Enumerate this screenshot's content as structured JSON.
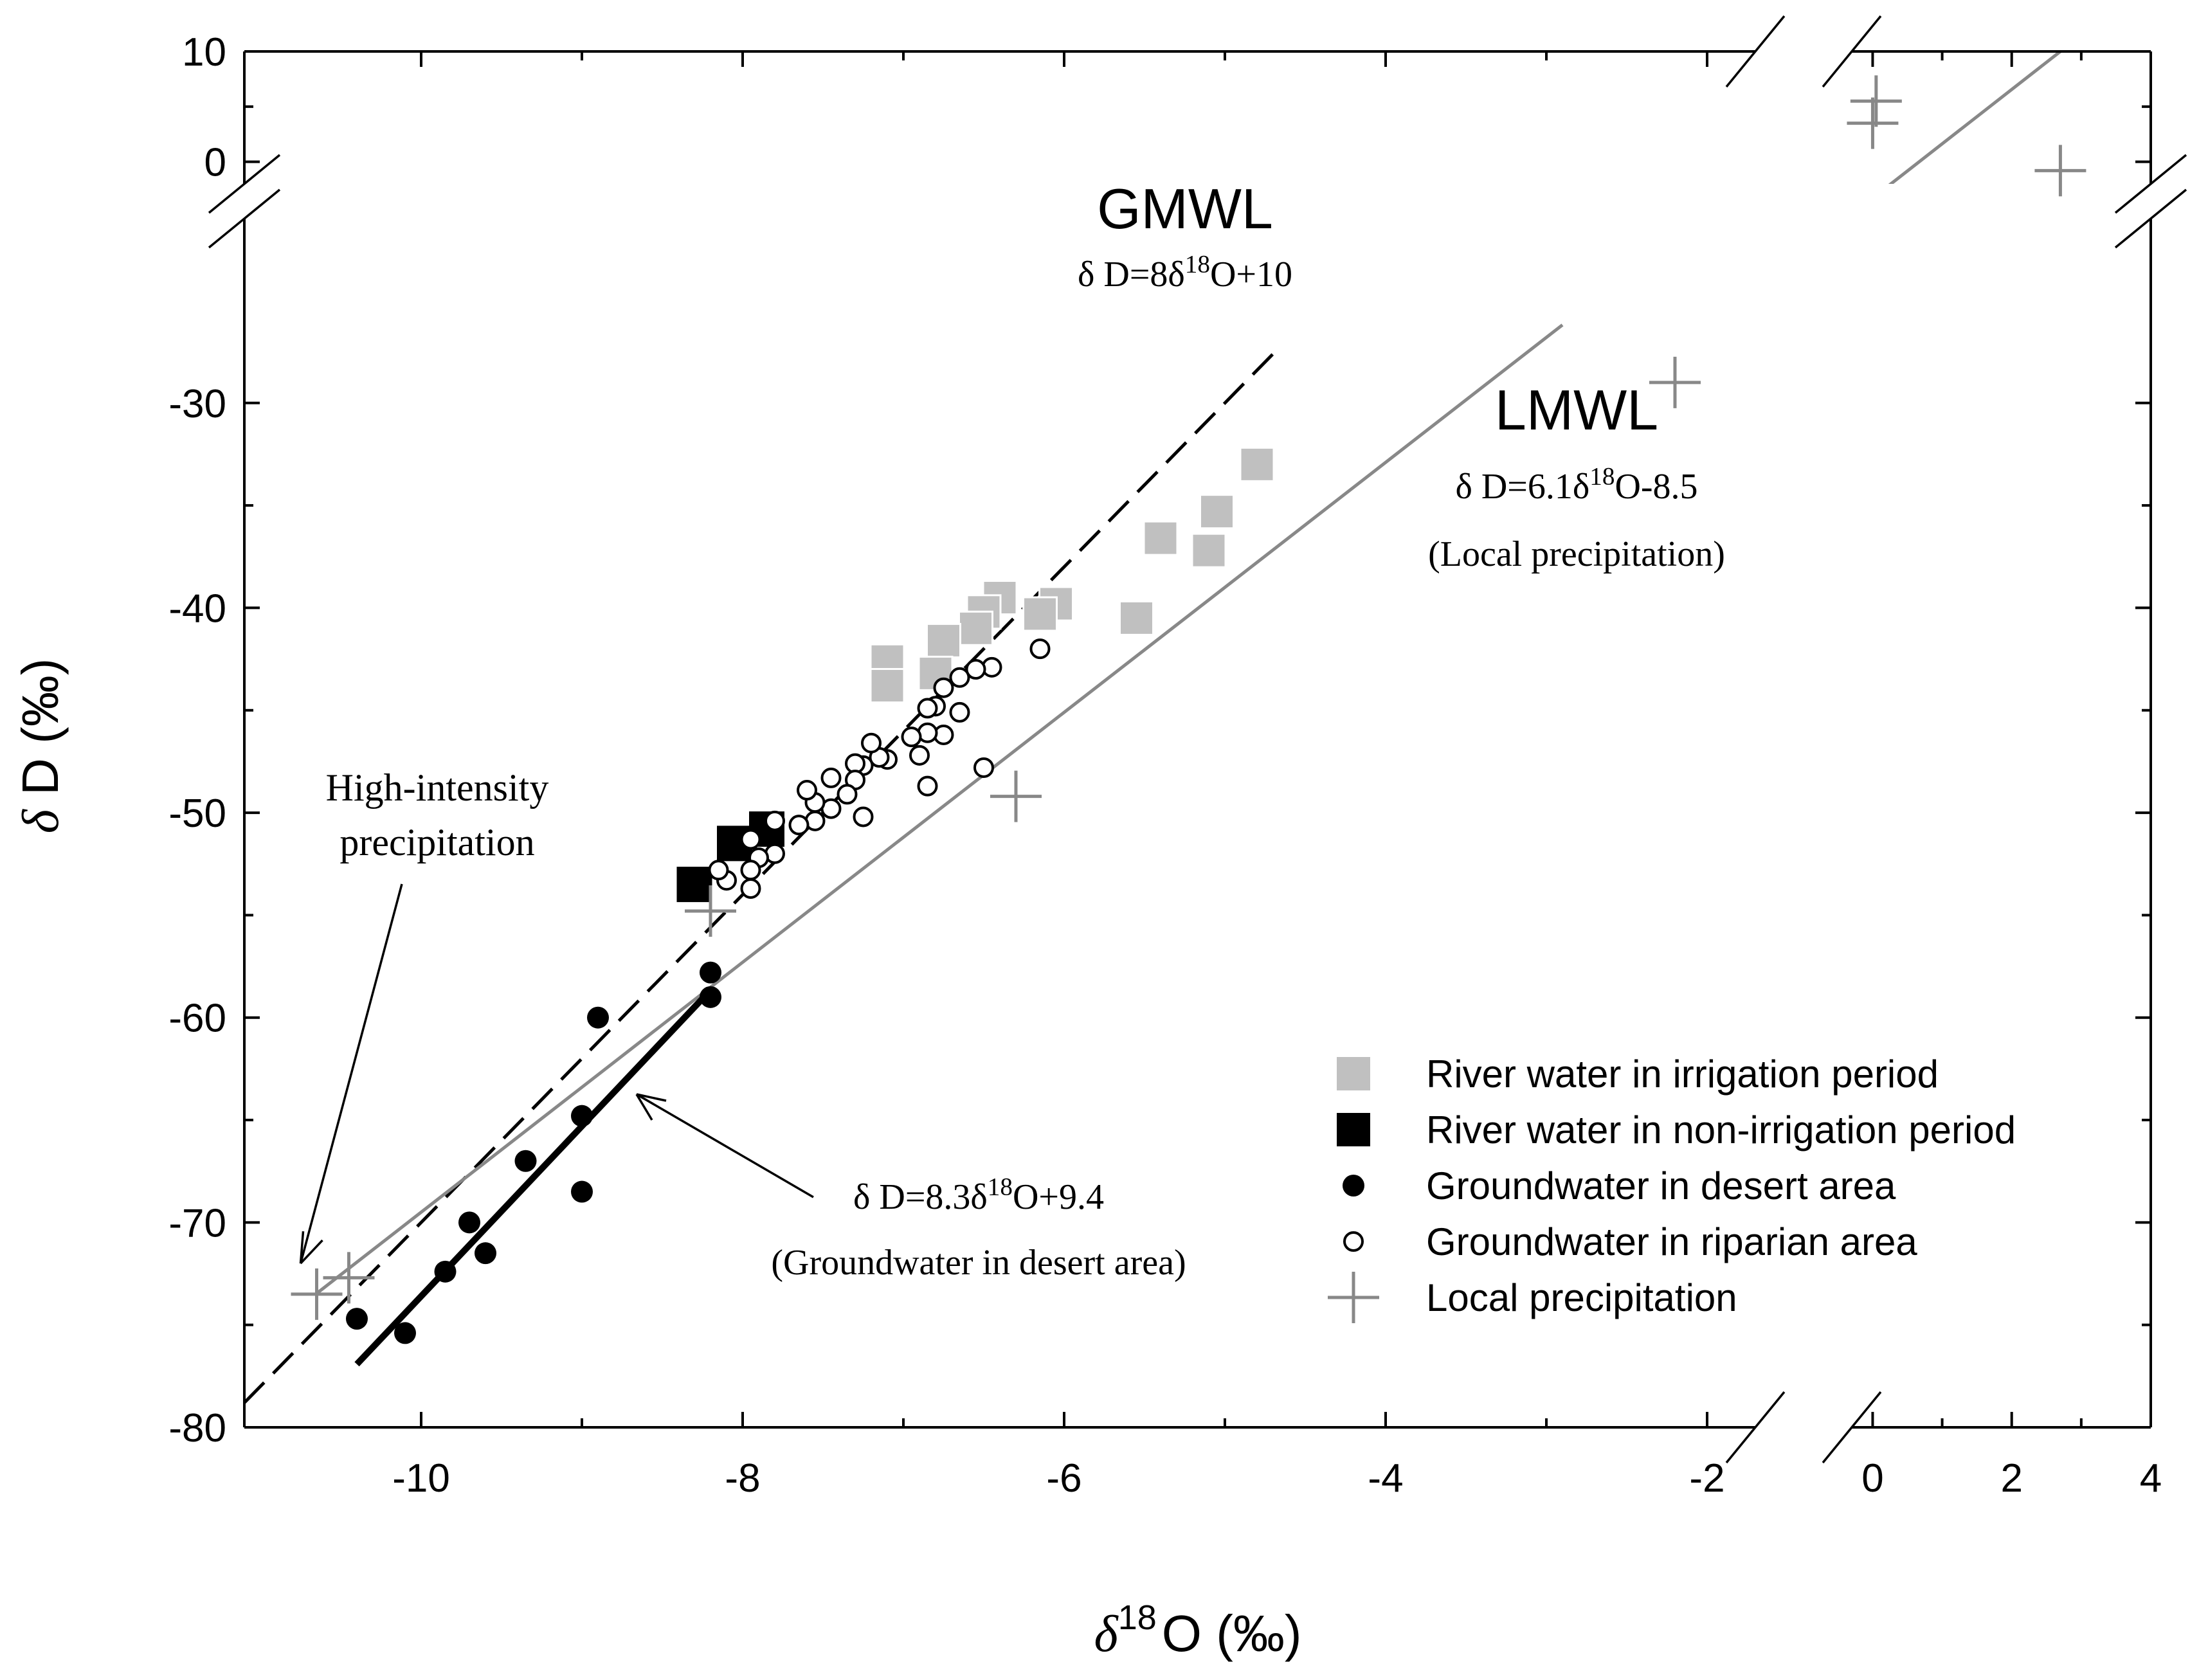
{
  "chart_data": {
    "type": "scatter",
    "xlabel": {
      "symbol": "δ",
      "superscript": "18",
      "text": "O (‰)"
    },
    "ylabel": {
      "symbol": "δ",
      "text": "D (‰)"
    },
    "x_segments": [
      {
        "range": [
          -11.1,
          -1.7
        ],
        "ticks": [
          -10,
          -8,
          -6,
          -4,
          -2
        ],
        "tick_labels": [
          "-10",
          "-8",
          "-6",
          "-4",
          "-2"
        ]
      },
      {
        "range": [
          -0.3,
          4.0
        ],
        "ticks": [
          0,
          2,
          4
        ],
        "tick_labels": [
          "0",
          "2",
          "4"
        ]
      }
    ],
    "y_segments": [
      {
        "range": [
          -80,
          -21
        ],
        "ticks": [
          -80,
          -70,
          -60,
          -50,
          -40,
          -30
        ],
        "tick_labels": [
          "-80",
          "-70",
          "-60",
          "-50",
          "-40",
          "-30"
        ]
      },
      {
        "range": [
          -2,
          10
        ],
        "ticks": [
          0,
          10
        ],
        "tick_labels": [
          "0",
          "10"
        ]
      }
    ],
    "lines": [
      {
        "name": "GMWL",
        "label": "GMWL",
        "equation": {
          "lhs": "δ D=8",
          "sym": "δ",
          "sup": "18",
          "rhs": "O+10"
        },
        "slope": 8,
        "intercept": 10,
        "x_range": [
          -11.1,
          -4.7
        ],
        "style": "dashed",
        "color": "#000000"
      },
      {
        "name": "LMWL",
        "label": "LMWL",
        "equation": {
          "lhs": "δ D=6.1",
          "sym": "δ",
          "sup": "18",
          "rhs": "O-8.5"
        },
        "note": "(Local precipitation)",
        "slope": 6.1,
        "intercept": -8.5,
        "x_range": [
          -10.65,
          -2.9
        ],
        "x_range_upper": [
          0.1,
          2.7
        ],
        "style": "solid",
        "color": "#888888"
      },
      {
        "name": "Groundwater in desert area fit",
        "equation": {
          "lhs": "δ D=8.3",
          "sym": "δ",
          "sup": "18",
          "rhs": "O+9.4"
        },
        "note": "(Groundwater in desert area)",
        "slope": 8.3,
        "intercept": 9.4,
        "x_range": [
          -10.4,
          -8.2
        ],
        "style": "thick",
        "color": "#000000"
      }
    ],
    "annotation": {
      "text": [
        "High-intensity",
        "precipitation"
      ],
      "points_to": [
        -10.75,
        -72
      ]
    },
    "series": [
      {
        "name": "River water in irrigation period",
        "marker": "square",
        "color": "#c0c0c0",
        "points": [
          [
            -4.8,
            -33
          ],
          [
            -5.05,
            -35.3
          ],
          [
            -5.1,
            -37.2
          ],
          [
            -5.4,
            -36.6
          ],
          [
            -5.55,
            -40.5
          ],
          [
            -6.05,
            -39.8
          ],
          [
            -6.15,
            -40.3
          ],
          [
            -6.4,
            -39.5
          ],
          [
            -6.5,
            -40.2
          ],
          [
            -6.55,
            -41
          ],
          [
            -6.75,
            -41.6
          ],
          [
            -6.8,
            -43.2
          ],
          [
            -7.1,
            -42.6
          ],
          [
            -7.1,
            -43.8
          ]
        ]
      },
      {
        "name": "River water in non-irrigation period",
        "marker": "square",
        "color": "#000000",
        "points": [
          [
            -8.3,
            -53.5
          ],
          [
            -8.05,
            -51.5
          ],
          [
            -7.85,
            -50.8
          ]
        ]
      },
      {
        "name": "Groundwater in desert area",
        "marker": "circle",
        "color": "#000000",
        "points": [
          [
            -8.2,
            -57.8
          ],
          [
            -8.2,
            -59
          ],
          [
            -8.9,
            -60
          ],
          [
            -9.0,
            -64.8
          ],
          [
            -9.0,
            -68.5
          ],
          [
            -9.35,
            -67
          ],
          [
            -9.7,
            -70
          ],
          [
            -9.6,
            -71.5
          ],
          [
            -9.85,
            -72.4
          ],
          [
            -10.4,
            -74.7
          ],
          [
            -10.1,
            -75.4
          ]
        ]
      },
      {
        "name": "Groundwater in riparian area",
        "marker": "open-circle",
        "color": "#000000",
        "points": [
          [
            -6.15,
            -42
          ],
          [
            -6.45,
            -42.9
          ],
          [
            -6.55,
            -43
          ],
          [
            -6.65,
            -43.4
          ],
          [
            -6.75,
            -43.9
          ],
          [
            -6.8,
            -44.8
          ],
          [
            -6.85,
            -44.9
          ],
          [
            -6.65,
            -45.1
          ],
          [
            -6.75,
            -46.2
          ],
          [
            -6.85,
            -46.1
          ],
          [
            -6.9,
            -47.2
          ],
          [
            -6.95,
            -46.3
          ],
          [
            -6.5,
            -47.8
          ],
          [
            -6.85,
            -48.7
          ],
          [
            -7.1,
            -47.4
          ],
          [
            -7.15,
            -47.3
          ],
          [
            -7.2,
            -46.6
          ],
          [
            -7.25,
            -47.7
          ],
          [
            -7.3,
            -47.6
          ],
          [
            -7.3,
            -48.4
          ],
          [
            -7.35,
            -49.1
          ],
          [
            -7.45,
            -48.3
          ],
          [
            -7.45,
            -49.8
          ],
          [
            -7.55,
            -49.5
          ],
          [
            -7.55,
            -50.4
          ],
          [
            -7.6,
            -48.9
          ],
          [
            -7.25,
            -50.2
          ],
          [
            -7.65,
            -50.6
          ],
          [
            -7.8,
            -50.4
          ],
          [
            -7.8,
            -52
          ],
          [
            -7.9,
            -52.2
          ],
          [
            -7.95,
            -51.3
          ],
          [
            -7.95,
            -52.8
          ],
          [
            -7.95,
            -53.7
          ],
          [
            -8.1,
            -53.3
          ],
          [
            -8.15,
            -52.8
          ]
        ]
      },
      {
        "name": "Local precipitation",
        "marker": "plus",
        "color": "#888888",
        "points": [
          [
            -10.65,
            -73.5
          ],
          [
            -10.45,
            -72.7
          ],
          [
            -8.2,
            -54.8
          ],
          [
            -6.3,
            -49.2
          ],
          [
            -2.2,
            -29
          ],
          [
            0.05,
            5.5
          ],
          [
            0.0,
            3.5
          ],
          [
            2.7,
            -0.8
          ]
        ]
      }
    ]
  }
}
